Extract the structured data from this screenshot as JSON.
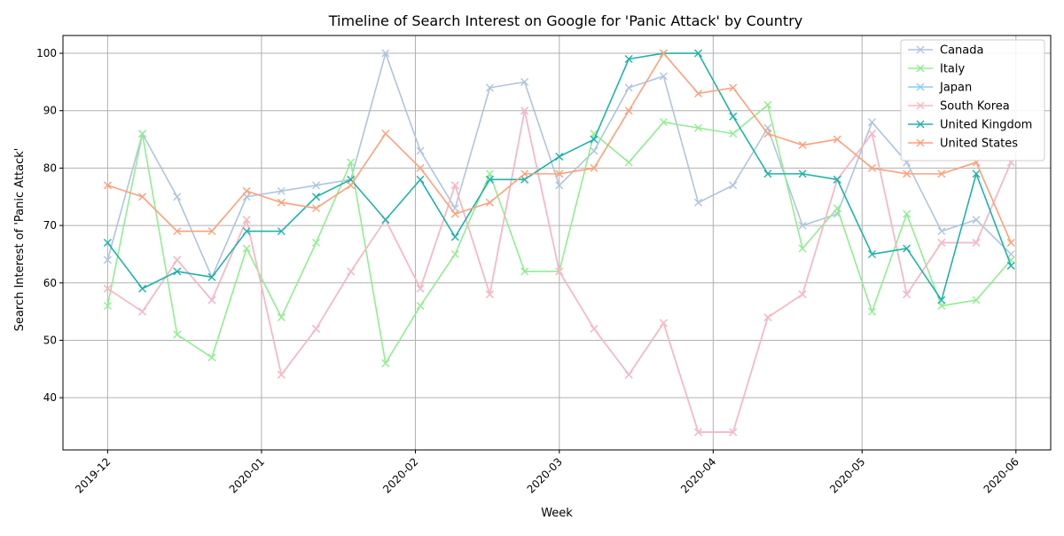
{
  "chart_data": {
    "type": "line",
    "title": "Timeline of Search Interest on Google for 'Panic Attack' by Country",
    "xlabel": "Week",
    "ylabel": "Search Interest of 'Panic Attack'",
    "grid": true,
    "legend_position": "top-right",
    "marker": "x",
    "x_ticks": [
      "2019-12",
      "2020-01",
      "2020-02",
      "2020-03",
      "2020-04",
      "2020-05",
      "2020-06"
    ],
    "x_tick_dates": [
      "2019-12-01",
      "2020-01-01",
      "2020-02-01",
      "2020-03-01",
      "2020-04-01",
      "2020-05-01",
      "2020-06-01"
    ],
    "y_ticks": [
      40,
      50,
      60,
      70,
      80,
      90,
      100
    ],
    "ylim": [
      30.9,
      103.1
    ],
    "xlim": [
      "2019-11-22",
      "2020-06-08"
    ],
    "x": [
      "2019-12-01",
      "2019-12-08",
      "2019-12-15",
      "2019-12-22",
      "2019-12-29",
      "2020-01-05",
      "2020-01-12",
      "2020-01-19",
      "2020-01-26",
      "2020-02-02",
      "2020-02-09",
      "2020-02-16",
      "2020-02-23",
      "2020-03-01",
      "2020-03-08",
      "2020-03-15",
      "2020-03-22",
      "2020-03-29",
      "2020-04-05",
      "2020-04-12",
      "2020-04-19",
      "2020-04-26",
      "2020-05-03",
      "2020-05-10",
      "2020-05-17",
      "2020-05-24",
      "2020-05-31"
    ],
    "series": [
      {
        "name": "Canada",
        "color": "#b0c4de",
        "values": [
          64,
          86,
          75,
          61,
          75,
          76,
          77,
          78,
          100,
          83,
          73,
          94,
          95,
          77,
          83,
          94,
          96,
          74,
          77,
          87,
          70,
          72,
          88,
          81,
          69,
          71,
          65
        ]
      },
      {
        "name": "Italy",
        "color": "#90ee90",
        "values": [
          56,
          86,
          51,
          47,
          66,
          54,
          67,
          81,
          46,
          56,
          65,
          79,
          62,
          62,
          86,
          81,
          88,
          87,
          86,
          91,
          66,
          73,
          55,
          72,
          56,
          57,
          64
        ]
      },
      {
        "name": "Japan",
        "color": "#87cefa",
        "values": [
          59,
          55,
          64,
          57,
          71,
          44,
          52,
          62,
          71,
          59,
          77,
          58,
          90,
          62,
          52,
          44,
          53,
          34,
          34,
          54,
          58,
          78,
          86,
          58,
          67,
          67,
          81
        ]
      },
      {
        "name": "South Korea",
        "color": "#ffb6c1",
        "values": [
          59,
          55,
          64,
          57,
          71,
          44,
          52,
          62,
          71,
          59,
          77,
          58,
          90,
          62,
          52,
          44,
          53,
          34,
          34,
          54,
          58,
          78,
          86,
          58,
          67,
          67,
          81
        ]
      },
      {
        "name": "United Kingdom",
        "color": "#20b2aa",
        "values": [
          67,
          59,
          62,
          61,
          69,
          69,
          75,
          78,
          71,
          78,
          68,
          78,
          78,
          82,
          85,
          99,
          100,
          100,
          89,
          79,
          79,
          78,
          65,
          66,
          57,
          79,
          63
        ]
      },
      {
        "name": "United States",
        "color": "#ffa07a",
        "values": [
          77,
          75,
          69,
          69,
          76,
          74,
          73,
          77,
          86,
          80,
          72,
          74,
          79,
          79,
          80,
          90,
          100,
          93,
          94,
          86,
          84,
          85,
          80,
          79,
          79,
          81,
          67
        ]
      }
    ]
  }
}
